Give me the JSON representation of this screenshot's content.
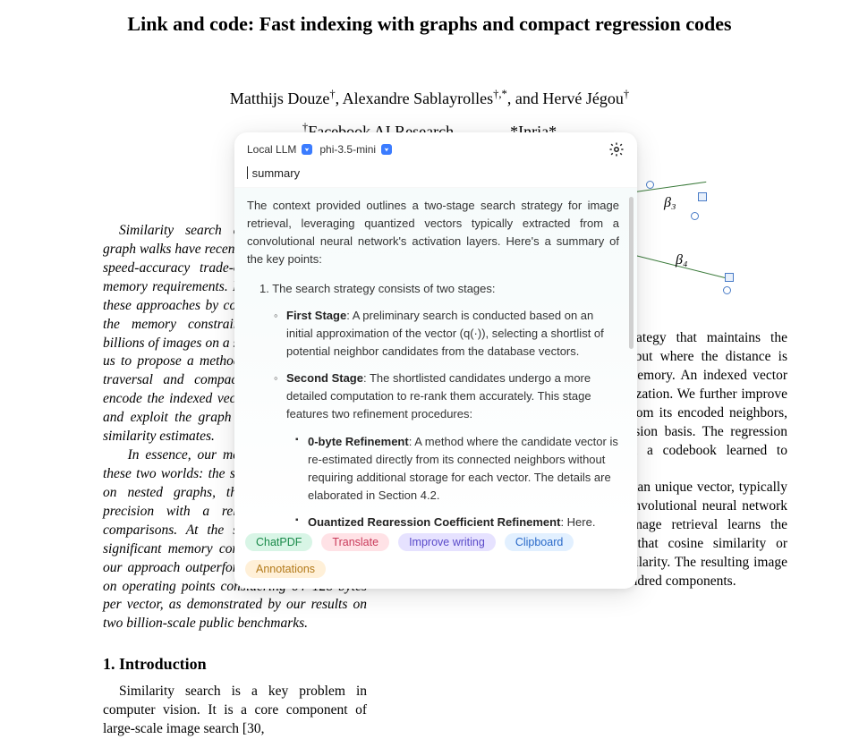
{
  "paper": {
    "title": "Link and code: Fast indexing with graphs and compact regression codes",
    "authors_html": "Matthijs Douze<sup>†</sup>, Alexandre Sablayrolles<sup>†,*</sup>, and Hervé Jégou<sup>†</sup>",
    "affiliations_html": "<sup>†</sup>Facebook AI Research&nbsp;&nbsp;&nbsp;&nbsp;&nbsp;&nbsp;&nbsp;&nbsp;&nbsp;&nbsp;&nbsp;&nbsp;&nbsp;&nbsp;*Inria*",
    "abstract_left": "Similarity search approaches based on graph walks have recently attained outstanding speed-accuracy trade-offs, taking aside the memory requirements. In this paper, we revisit these approaches by considering, additionally, the memory constraint required to index billions of images on a single server. This leads us to propose a method based both on graph traversal and compact representations. We encode the indexed vectors using quantization and exploit the graph structure to refine the similarity estimates.\nIn essence, our method takes the best of these two worlds: the search strategy is based on nested graphs, thereby providing high precision with a relatively small set of comparisons. At the same time it offers a significant memory compression. As a result, our approach outperforms the state of the art on operating points considering 64–128 bytes per vector, as demonstrated by our results on two billion-scale public benchmarks.",
    "section1_title": "1. Introduction",
    "intro_left": "Similarity search is a key problem in computer vision. It is a core component of large-scale image search [30,",
    "right_p1": "oach: we adopt a graph traversal strategy that maintains the connectivity between all database points, but where the distance is based on compressed descriptors to save memory. An indexed vector (circle) is approximated (square) with quantization. We further improve the estimate (diamond) of a given vector from its encoded neighbors, which are used as a supplementary regression basis. The regression coefficients (β values) are selected from a codebook learned to minimize the reconstruction error.",
    "right_p2": "In this case each image is represented by an unique vector, typically extracted from the activation layers of a convolutional neural network [4, 20, 39]. The state of the art in image retrieval learns the representation end-to-end [20, 39] such that cosine similarity or Euclidean distance reflects the semantic similarity. The resulting image descriptors consist of no more than a few hundred components.",
    "cite": "[20, 39]"
  },
  "diagram": {
    "beta3_label": "β₃",
    "beta4_label": "β₄",
    "square_color": "#4a7cc7",
    "line_color": "#3a7a3a"
  },
  "overlay": {
    "engine_label": "Local LLM",
    "model_label": "phi-3.5-mini",
    "query": "summary",
    "summary_intro": "The context provided outlines a two-stage search strategy for image retrieval, leveraging quantized vectors typically extracted from a convolutional neural network's activation layers. Here's a summary of the key points:",
    "num1": "1. The search strategy consists of two stages:",
    "first_stage_label": "First Stage",
    "first_stage_text": ": A preliminary search is conducted based on an initial approximation of the vector (q(·)), selecting a shortlist of potential neighbor candidates from the database vectors.",
    "second_stage_label": "Second Stage",
    "second_stage_text": ": The shortlisted candidates undergo a more detailed computation to re-rank them accurately. This stage features two refinement procedures:",
    "zero_byte_label": "0-byte Refinement",
    "zero_byte_text": ": A method where the candidate vector is re-estimated directly from its connected neighbors without requiring additional storage for each vector. The details are elaborated in Section 4.2.",
    "qrc_label": "Quantized Regression Coefficient Refinement",
    "qrc_text": ": Here, each vector uses a set of quantized regression coefficients that are learned and",
    "pills": [
      {
        "label": "ChatPDF",
        "bg": "#d8f5e6",
        "fg": "#1a8a4a"
      },
      {
        "label": "Translate",
        "bg": "#ffe2e6",
        "fg": "#c93a5a"
      },
      {
        "label": "Improve writing",
        "bg": "#e6e2ff",
        "fg": "#5a4ac9"
      },
      {
        "label": "Clipboard",
        "bg": "#e2f0ff",
        "fg": "#2a6ac9"
      },
      {
        "label": "Annotations",
        "bg": "#fff0d8",
        "fg": "#b37a1a"
      }
    ]
  },
  "colors": {
    "overlay_bg": "#ffffff",
    "summary_bg": "#f6fbfb",
    "chev_bg": "#3b7cff",
    "scrollbar": "#d0d0d0"
  }
}
